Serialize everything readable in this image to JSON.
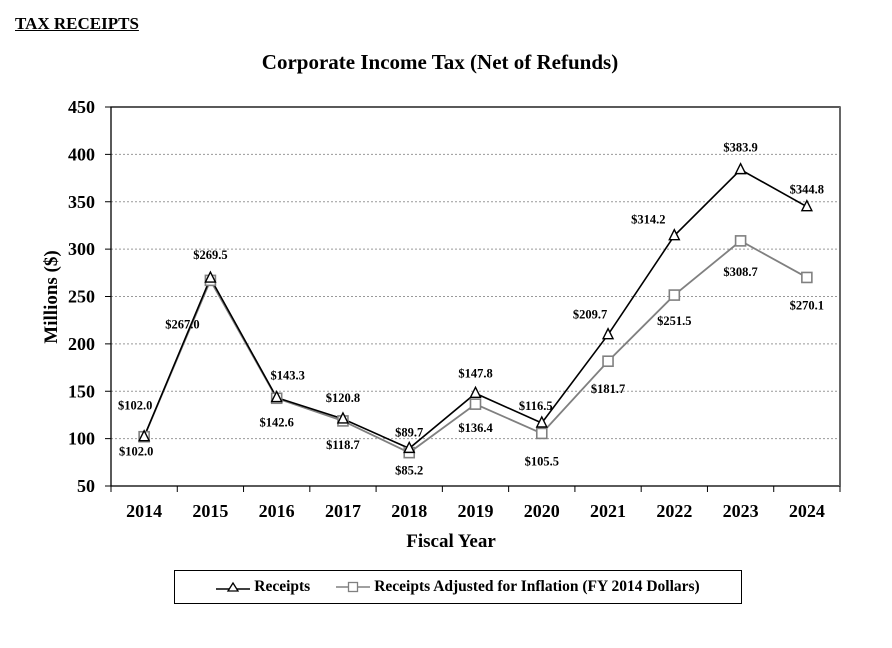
{
  "page": {
    "section_title": "TAX RECEIPTS"
  },
  "chart_data": {
    "type": "line",
    "title": "Corporate Income Tax (Net of Refunds)",
    "xlabel": "Fiscal Year",
    "ylabel": "Millions ($)",
    "ylim": [
      50,
      450
    ],
    "yticks": [
      50,
      100,
      150,
      200,
      250,
      300,
      350,
      400,
      450
    ],
    "grid": true,
    "legend_position": "bottom",
    "categories": [
      "2014",
      "2015",
      "2016",
      "2017",
      "2018",
      "2019",
      "2020",
      "2021",
      "2022",
      "2023",
      "2024"
    ],
    "series": [
      {
        "name": "Receipts",
        "color": "#000000",
        "marker": "triangle",
        "values": [
          102.0,
          269.5,
          143.3,
          120.8,
          89.7,
          147.8,
          116.5,
          209.7,
          314.2,
          383.9,
          344.8
        ],
        "labels": [
          "$102.0",
          "$269.5",
          "$143.3",
          "$120.8",
          "$89.7",
          "$147.8",
          "$116.5",
          "$209.7",
          "$314.2",
          "$383.9",
          "$344.8"
        ]
      },
      {
        "name": "Receipts Adjusted for Inflation (FY 2014 Dollars)",
        "color": "#808080",
        "marker": "square",
        "values": [
          102.0,
          267.0,
          142.6,
          118.7,
          85.2,
          136.4,
          105.5,
          181.7,
          251.5,
          308.7,
          270.1
        ],
        "labels": [
          "$102.0",
          "$267.0",
          "$142.6",
          "$118.7",
          "$85.2",
          "$136.4",
          "$105.5",
          "$181.7",
          "$251.5",
          "$308.7",
          "$270.1"
        ]
      }
    ]
  }
}
